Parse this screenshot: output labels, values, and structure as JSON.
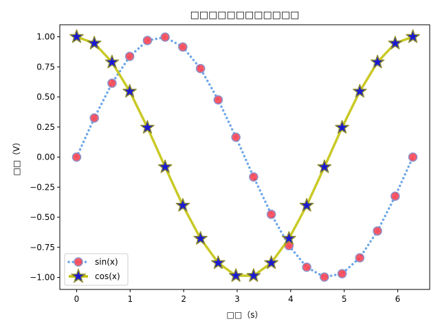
{
  "chart_data": {
    "type": "line",
    "title": "□□□□□□□□□□□□",
    "xlabel": "□□（s）",
    "ylabel": "□□（V）",
    "xlim": [
      -0.3142,
      6.5973
    ],
    "ylim": [
      -1.1,
      1.1
    ],
    "xticks": [
      0,
      1,
      2,
      3,
      4,
      5,
      6
    ],
    "yticks": [
      -1.0,
      -0.75,
      -0.5,
      -0.25,
      0.0,
      0.25,
      0.5,
      0.75,
      1.0
    ],
    "xtick_labels": [
      "0",
      "1",
      "2",
      "3",
      "4",
      "5",
      "6"
    ],
    "ytick_labels": [
      "−1.00",
      "−0.75",
      "−0.50",
      "−0.25",
      "0.00",
      "0.25",
      "0.50",
      "0.75",
      "1.00"
    ],
    "grid": false,
    "legend_position": "lower-left",
    "x": [
      0.0,
      0.3307,
      0.6614,
      0.9921,
      1.3228,
      1.6535,
      1.9842,
      2.3149,
      2.6456,
      2.9762,
      3.3069,
      3.6376,
      3.9683,
      4.299,
      4.6297,
      4.9604,
      5.2911,
      5.6218,
      5.9525,
      6.2832
    ],
    "series": [
      {
        "name": "sin(x)",
        "values": [
          0.0,
          0.325,
          0.614,
          0.837,
          0.969,
          0.997,
          0.915,
          0.736,
          0.476,
          0.165,
          -0.165,
          -0.476,
          -0.736,
          -0.915,
          -0.997,
          -0.969,
          -0.837,
          -0.614,
          -0.325,
          0.0
        ],
        "line_color": "#4a90e2",
        "line_style": "dotted",
        "marker": "circle",
        "marker_face": "#ff3b4a",
        "marker_edge": "#8a8fc8"
      },
      {
        "name": "cos(x)",
        "values": [
          1.0,
          0.946,
          0.789,
          0.546,
          0.246,
          -0.082,
          -0.402,
          -0.677,
          -0.879,
          -0.986,
          -0.986,
          -0.879,
          -0.677,
          -0.402,
          -0.082,
          0.246,
          0.546,
          0.789,
          0.946,
          1.0
        ],
        "line_color": "#bfbf00",
        "line_style": "solid",
        "marker": "star",
        "marker_face": "#1a1ad0",
        "marker_edge": "#8c8a2e"
      }
    ]
  }
}
